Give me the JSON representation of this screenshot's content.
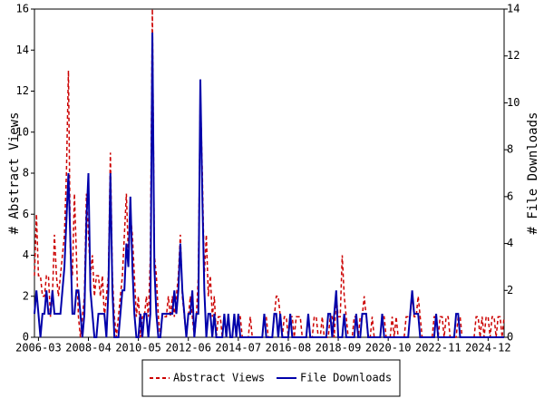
{
  "chart_data": {
    "type": "line",
    "y_label": "# Abstract Views",
    "y2_label": "# File Downloads",
    "xlim": [
      "2006-01",
      "2025-08"
    ],
    "xticks": [
      "2006-03",
      "2008-04",
      "2010-05",
      "2012-06",
      "2014-07",
      "2016-08",
      "2018-09",
      "2020-10",
      "2022-11",
      "2024-12"
    ],
    "ylim": [
      0,
      16
    ],
    "yticks": [
      0,
      2,
      4,
      6,
      8,
      10,
      12,
      14,
      16
    ],
    "y2lim": [
      0,
      14
    ],
    "y2ticks": [
      0,
      2,
      4,
      6,
      8,
      10,
      12,
      14
    ],
    "legend": "bottom",
    "grid": false,
    "x": [
      "2006-01",
      "2006-02",
      "2006-03",
      "2006-04",
      "2006-05",
      "2006-06",
      "2006-07",
      "2006-08",
      "2006-09",
      "2006-10",
      "2006-11",
      "2006-12",
      "2007-01",
      "2007-02",
      "2007-03",
      "2007-04",
      "2007-05",
      "2007-06",
      "2007-07",
      "2007-08",
      "2007-09",
      "2007-10",
      "2007-11",
      "2007-12",
      "2008-01",
      "2008-02",
      "2008-03",
      "2008-04",
      "2008-05",
      "2008-06",
      "2008-07",
      "2008-08",
      "2008-09",
      "2008-10",
      "2008-11",
      "2008-12",
      "2009-01",
      "2009-02",
      "2009-03",
      "2009-04",
      "2009-05",
      "2009-06",
      "2009-07",
      "2009-08",
      "2009-09",
      "2009-10",
      "2009-11",
      "2009-12",
      "2010-01",
      "2010-02",
      "2010-03",
      "2010-04",
      "2010-05",
      "2010-06",
      "2010-07",
      "2010-08",
      "2010-09",
      "2010-10",
      "2010-11",
      "2010-12",
      "2011-01",
      "2011-02",
      "2011-03",
      "2011-04",
      "2011-05",
      "2011-06",
      "2011-07",
      "2011-08",
      "2011-09",
      "2011-10",
      "2011-11",
      "2011-12",
      "2012-01",
      "2012-02",
      "2012-03",
      "2012-04",
      "2012-05",
      "2012-06",
      "2012-07",
      "2012-08",
      "2012-09",
      "2012-10",
      "2012-11",
      "2012-12",
      "2013-01",
      "2013-02",
      "2013-03",
      "2013-04",
      "2013-05",
      "2013-06",
      "2013-07",
      "2013-08",
      "2013-09",
      "2013-10",
      "2013-11",
      "2013-12",
      "2014-01",
      "2014-02",
      "2014-03",
      "2014-04",
      "2014-05",
      "2014-06",
      "2014-07",
      "2014-08",
      "2014-09",
      "2014-10",
      "2014-11",
      "2014-12",
      "2015-01",
      "2015-02",
      "2015-03",
      "2015-04",
      "2015-05",
      "2015-06",
      "2015-07",
      "2015-08",
      "2015-09",
      "2015-10",
      "2015-11",
      "2015-12",
      "2016-01",
      "2016-02",
      "2016-03",
      "2016-04",
      "2016-05",
      "2016-06",
      "2016-07",
      "2016-08",
      "2016-09",
      "2016-10",
      "2016-11",
      "2016-12",
      "2017-01",
      "2017-02",
      "2017-03",
      "2017-04",
      "2017-05",
      "2017-06",
      "2017-07",
      "2017-08",
      "2017-09",
      "2017-10",
      "2017-11",
      "2017-12",
      "2018-01",
      "2018-02",
      "2018-03",
      "2018-04",
      "2018-05",
      "2018-06",
      "2018-07",
      "2018-08",
      "2018-09",
      "2018-10",
      "2018-11",
      "2018-12",
      "2019-01",
      "2019-02",
      "2019-03",
      "2019-04",
      "2019-05",
      "2019-06",
      "2019-07",
      "2019-08",
      "2019-09",
      "2019-10",
      "2019-11",
      "2019-12",
      "2020-01",
      "2020-02",
      "2020-03",
      "2020-04",
      "2020-05",
      "2020-06",
      "2020-07",
      "2020-08",
      "2020-09",
      "2020-10",
      "2020-11",
      "2020-12",
      "2021-01",
      "2021-02",
      "2021-03",
      "2021-04",
      "2021-05",
      "2021-06",
      "2021-07",
      "2021-08",
      "2021-09",
      "2021-10",
      "2021-11",
      "2021-12",
      "2022-01",
      "2022-02",
      "2022-03",
      "2022-04",
      "2022-05",
      "2022-06",
      "2022-07",
      "2022-08",
      "2022-09",
      "2022-10",
      "2022-11",
      "2022-12",
      "2023-01",
      "2023-02",
      "2023-03",
      "2023-04",
      "2023-05",
      "2023-06",
      "2023-07",
      "2023-08",
      "2023-09",
      "2023-10",
      "2023-11",
      "2023-12",
      "2024-01",
      "2024-02",
      "2024-03",
      "2024-04",
      "2024-05",
      "2024-06",
      "2024-07",
      "2024-08",
      "2024-09",
      "2024-10",
      "2024-11",
      "2024-12",
      "2025-01",
      "2025-02",
      "2025-03",
      "2025-04",
      "2025-05",
      "2025-06",
      "2025-07",
      "2025-08"
    ],
    "series": [
      {
        "name": "Abstract Views",
        "color": "#cc0000",
        "dash": true,
        "axis": "y",
        "values": [
          3,
          6,
          3,
          3,
          2,
          2,
          3,
          3,
          1,
          2,
          5,
          3,
          2,
          3,
          4,
          5,
          8,
          13,
          4,
          3,
          7,
          4,
          1,
          0,
          1,
          2,
          7,
          5,
          3,
          4,
          2,
          3,
          3,
          2,
          3,
          1,
          2,
          3,
          9,
          3,
          1,
          0,
          1,
          2,
          3,
          5,
          7,
          4,
          6,
          5,
          3,
          1,
          2,
          0,
          1,
          1,
          2,
          1,
          4,
          16,
          4,
          3,
          1,
          0,
          1,
          1,
          1,
          2,
          1,
          2,
          1,
          2,
          3,
          5,
          2,
          1,
          0,
          1,
          2,
          1,
          0,
          1,
          3,
          12,
          8,
          3,
          5,
          2,
          3,
          1,
          2,
          0,
          1,
          1,
          0,
          1,
          0,
          1,
          0,
          0,
          1,
          0,
          1,
          1,
          0,
          0,
          0,
          0,
          1,
          0,
          0,
          0,
          0,
          0,
          0,
          1,
          1,
          0,
          0,
          0,
          1,
          2,
          2,
          1,
          0,
          1,
          1,
          0,
          1,
          1,
          0,
          1,
          1,
          1,
          0,
          0,
          0,
          1,
          0,
          0,
          1,
          1,
          0,
          0,
          1,
          0,
          0,
          0,
          1,
          1,
          0,
          2,
          1,
          1,
          4,
          2,
          1,
          0,
          0,
          0,
          1,
          1,
          0,
          1,
          1,
          2,
          1,
          0,
          0,
          1,
          0,
          0,
          0,
          0,
          1,
          1,
          0,
          0,
          0,
          1,
          0,
          1,
          0,
          0,
          0,
          0,
          1,
          1,
          1,
          2,
          1,
          1,
          2,
          1,
          0,
          0,
          0,
          0,
          0,
          0,
          1,
          1,
          0,
          1,
          1,
          0,
          1,
          1,
          0,
          0,
          0,
          0,
          1,
          1,
          0,
          0,
          0,
          0,
          0,
          0,
          0,
          1,
          1,
          0,
          1,
          0,
          1,
          1,
          0,
          1,
          1,
          0,
          1,
          1,
          0,
          1
        ]
      },
      {
        "name": "File Downloads",
        "color": "#0000aa",
        "dash": false,
        "axis": "y2",
        "values": [
          1,
          2,
          1,
          0,
          1,
          1,
          2,
          1,
          1,
          2,
          1,
          1,
          1,
          1,
          2,
          3,
          5,
          7,
          4,
          1,
          1,
          2,
          2,
          1,
          0,
          1,
          5,
          7,
          2,
          1,
          0,
          0,
          1,
          1,
          1,
          1,
          0,
          2,
          7,
          2,
          0,
          0,
          0,
          1,
          2,
          2,
          4,
          3,
          6,
          3,
          1,
          0,
          0,
          1,
          0,
          1,
          1,
          0,
          1,
          13,
          3,
          1,
          0,
          0,
          1,
          1,
          1,
          1,
          1,
          1,
          2,
          1,
          2,
          4,
          2,
          1,
          0,
          1,
          1,
          2,
          0,
          1,
          1,
          11,
          6,
          2,
          0,
          1,
          1,
          0,
          1,
          0,
          0,
          0,
          0,
          1,
          0,
          1,
          0,
          0,
          1,
          0,
          1,
          0,
          0,
          0,
          0,
          0,
          0,
          0,
          0,
          0,
          0,
          0,
          0,
          1,
          0,
          0,
          0,
          0,
          1,
          1,
          0,
          1,
          0,
          0,
          0,
          0,
          1,
          0,
          0,
          0,
          0,
          0,
          0,
          0,
          0,
          1,
          0,
          0,
          0,
          0,
          0,
          0,
          0,
          0,
          0,
          1,
          1,
          0,
          1,
          2,
          0,
          0,
          0,
          1,
          0,
          0,
          0,
          0,
          0,
          1,
          0,
          0,
          1,
          1,
          1,
          0,
          0,
          0,
          0,
          0,
          0,
          0,
          1,
          0,
          0,
          0,
          0,
          0,
          0,
          0,
          0,
          0,
          0,
          0,
          0,
          0,
          1,
          2,
          1,
          1,
          1,
          0,
          0,
          0,
          0,
          0,
          0,
          0,
          0,
          1,
          0,
          0,
          0,
          0,
          0,
          0,
          0,
          0,
          0,
          1,
          1,
          0,
          0,
          0,
          0,
          0,
          0,
          0,
          0,
          0,
          0,
          0,
          0,
          0,
          0,
          0,
          0,
          0,
          0,
          0,
          0,
          0,
          0,
          0
        ]
      }
    ]
  }
}
